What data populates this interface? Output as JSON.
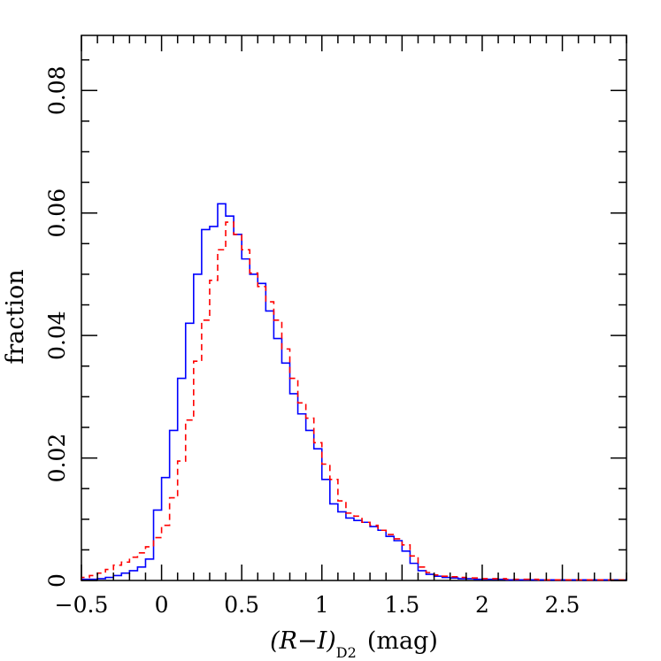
{
  "chart_data": {
    "type": "histogram",
    "xlabel": "(R−I)",
    "xlabel_subscript": "D2",
    "xlabel_unit": "(mag)",
    "ylabel": "fraction",
    "xlim": [
      -0.5,
      2.9
    ],
    "ylim": [
      0,
      0.089
    ],
    "bin_width": 0.05,
    "x_ticks": [
      {
        "value": -0.5,
        "label": "−0.5"
      },
      {
        "value": 0,
        "label": "0"
      },
      {
        "value": 0.5,
        "label": "0.5"
      },
      {
        "value": 1,
        "label": "1"
      },
      {
        "value": 1.5,
        "label": "1.5"
      },
      {
        "value": 2,
        "label": "2"
      },
      {
        "value": 2.5,
        "label": "2.5"
      }
    ],
    "y_ticks": [
      {
        "value": 0,
        "label": "0"
      },
      {
        "value": 0.02,
        "label": "0.02"
      },
      {
        "value": 0.04,
        "label": "0.04"
      },
      {
        "value": 0.06,
        "label": "0.06"
      },
      {
        "value": 0.08,
        "label": "0.08"
      }
    ],
    "grid": false,
    "series": [
      {
        "style": "solid",
        "color": "#0000ff",
        "bin_start": -0.5,
        "values": [
          0.0002,
          0.0002,
          0.0003,
          0.0005,
          0.0008,
          0.0012,
          0.0016,
          0.0022,
          0.0035,
          0.0115,
          0.0168,
          0.0245,
          0.033,
          0.042,
          0.05,
          0.0573,
          0.0578,
          0.0615,
          0.0595,
          0.0565,
          0.0525,
          0.05,
          0.0485,
          0.044,
          0.0395,
          0.0355,
          0.0305,
          0.0272,
          0.0245,
          0.0215,
          0.0165,
          0.0125,
          0.0112,
          0.0102,
          0.0098,
          0.0095,
          0.0088,
          0.0082,
          0.0072,
          0.0065,
          0.0048,
          0.0028,
          0.0016,
          0.001,
          0.0007,
          0.0005,
          0.0004,
          0.0003,
          0.0003,
          0.0002,
          0.0002,
          0.0002,
          0.0002,
          0.0001,
          0.0001,
          0.0001,
          0.0001,
          0.0001,
          0.0001,
          0.0001,
          0.0001,
          0.0001,
          0.0001,
          0.0001,
          0.0001,
          0.0001,
          0.0001,
          0.0001
        ]
      },
      {
        "style": "dashed",
        "color": "#ff0000",
        "bin_start": -0.5,
        "values": [
          0.0005,
          0.0008,
          0.0012,
          0.0018,
          0.0025,
          0.003,
          0.0038,
          0.0045,
          0.0055,
          0.007,
          0.009,
          0.0135,
          0.0195,
          0.0262,
          0.0358,
          0.0425,
          0.049,
          0.054,
          0.0585,
          0.0565,
          0.054,
          0.0502,
          0.048,
          0.0455,
          0.0425,
          0.0378,
          0.033,
          0.029,
          0.0265,
          0.0225,
          0.019,
          0.0165,
          0.013,
          0.011,
          0.0105,
          0.0095,
          0.009,
          0.0082,
          0.0075,
          0.0068,
          0.0058,
          0.004,
          0.0022,
          0.0013,
          0.0009,
          0.0007,
          0.0006,
          0.0005,
          0.0004,
          0.0004,
          0.0003,
          0.0003,
          0.0003,
          0.0002,
          0.0002,
          0.0002,
          0.0002,
          0.0001,
          0.0001,
          0.0001,
          0.0001,
          0.0001,
          0.0001,
          0.0001,
          0.0001,
          0.0001,
          0.0001,
          0.0001
        ]
      }
    ]
  }
}
